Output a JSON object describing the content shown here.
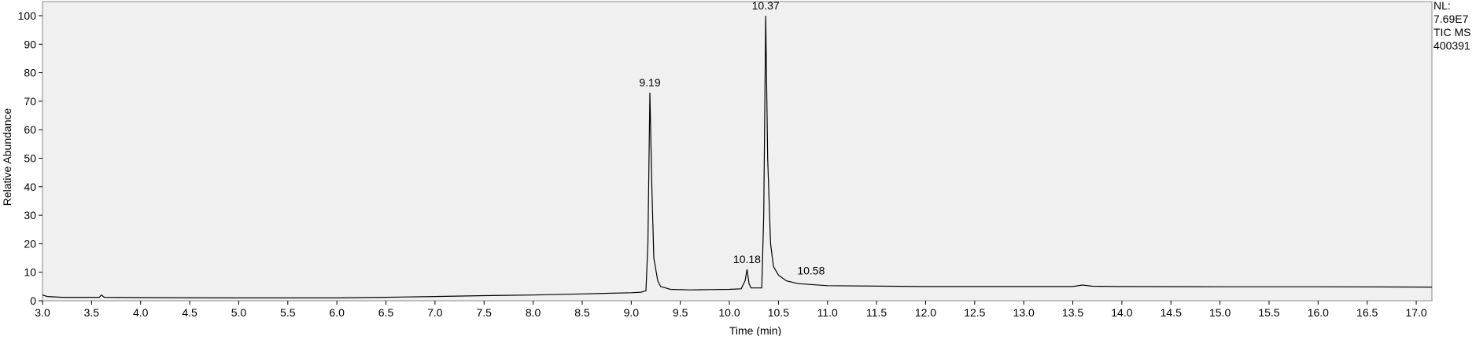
{
  "chart_data": {
    "type": "line",
    "xlabel": "Time (min)",
    "ylabel": "Relative Abundance",
    "side_text": [
      "NL:",
      "7.69E7",
      "TIC  MS",
      "400391"
    ],
    "xlim": [
      3.0,
      17.16
    ],
    "ylim": [
      0,
      100
    ],
    "xticks": [
      {
        "value": 3.0,
        "label": "3.0"
      },
      3.5,
      {
        "value": 4.0,
        "label": "4.0"
      },
      4.5,
      {
        "value": 5.0,
        "label": "5.0"
      },
      5.5,
      {
        "value": 6.0,
        "label": "6.0"
      },
      6.5,
      {
        "value": 7.0,
        "label": "7.0"
      },
      7.5,
      {
        "value": 8.0,
        "label": "8.0"
      },
      8.5,
      {
        "value": 9.0,
        "label": "9.0"
      },
      9.5,
      {
        "value": 10.0,
        "label": "10.0"
      },
      10.5,
      {
        "value": 11.0,
        "label": "11.0"
      },
      11.5,
      {
        "value": 12.0,
        "label": "12.0"
      },
      12.5,
      {
        "value": 13.0,
        "label": "13.0"
      },
      13.5,
      {
        "value": 14.0,
        "label": "14.0"
      },
      14.5,
      {
        "value": 15.0,
        "label": "15.0"
      },
      15.5,
      {
        "value": 16.0,
        "label": "16.0"
      },
      16.5,
      {
        "value": 17.0,
        "label": "17.0"
      }
    ],
    "yticks": [
      0,
      10,
      20,
      30,
      40,
      50,
      60,
      70,
      80,
      90,
      100
    ],
    "series": [
      {
        "name": "TIC",
        "color": "#000000",
        "x": [
          3.0,
          3.05,
          3.2,
          3.58,
          3.6,
          3.63,
          4.0,
          5.0,
          6.0,
          6.5,
          7.0,
          7.5,
          8.0,
          8.5,
          9.0,
          9.1,
          9.15,
          9.17,
          9.19,
          9.21,
          9.23,
          9.27,
          9.3,
          9.35,
          9.4,
          9.6,
          9.8,
          10.0,
          10.12,
          10.16,
          10.18,
          10.2,
          10.22,
          10.33,
          10.35,
          10.37,
          10.39,
          10.42,
          10.45,
          10.5,
          10.58,
          10.7,
          11.0,
          12.0,
          13.0,
          13.5,
          13.6,
          13.7,
          14.0,
          15.0,
          16.0,
          17.16
        ],
        "values": [
          2,
          1.5,
          1.2,
          1.2,
          2,
          1.2,
          1.1,
          1.0,
          1.0,
          1.2,
          1.5,
          1.8,
          2.0,
          2.4,
          2.8,
          3.0,
          3.5,
          20,
          73,
          40,
          15,
          7,
          5,
          4.5,
          4,
          3.8,
          3.9,
          4.0,
          4.2,
          7,
          11,
          6,
          4.5,
          4.5,
          30,
          100,
          50,
          20,
          12,
          9,
          7,
          6,
          5.3,
          5.0,
          5.0,
          5.0,
          5.5,
          5.1,
          5.0,
          4.9,
          4.9,
          4.8
        ]
      }
    ],
    "annotations": [
      {
        "text": "9.19",
        "x": 9.19,
        "y": 73
      },
      {
        "text": "10.18",
        "x": 10.18,
        "y": 11
      },
      {
        "text": "10.37",
        "x": 10.37,
        "y": 100
      },
      {
        "text": "10.58",
        "x": 10.58,
        "y": 7
      }
    ]
  }
}
